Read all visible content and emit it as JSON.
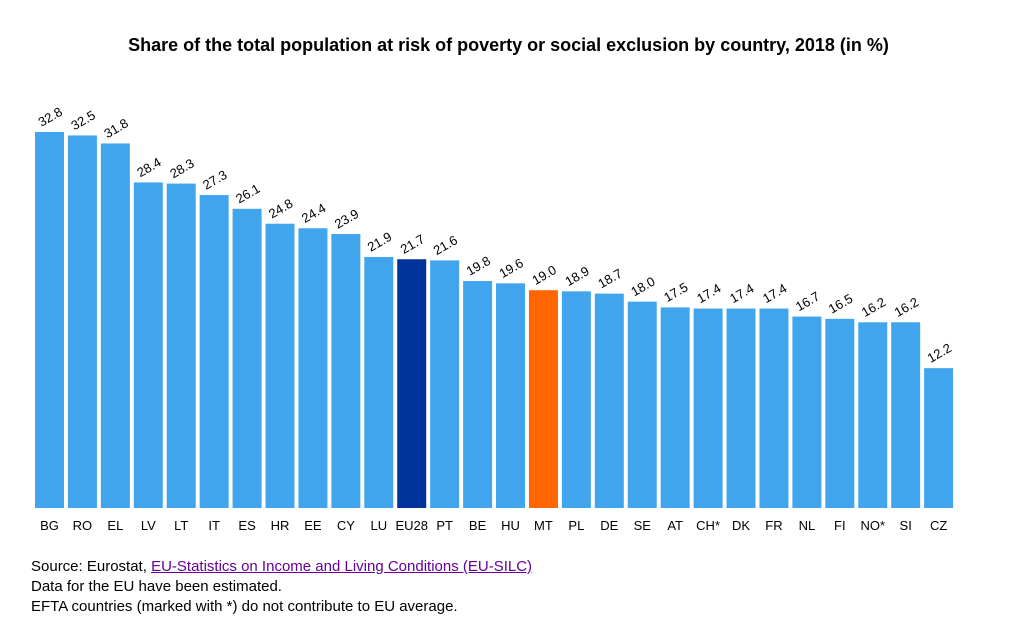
{
  "chart_data": {
    "type": "bar",
    "title": "Share of the total population at risk of poverty or social exclusion by country, 2018 (in %)",
    "xlabel": "",
    "ylabel": "",
    "ylim": [
      0,
      32.8
    ],
    "categories": [
      "BG",
      "RO",
      "EL",
      "LV",
      "LT",
      "IT",
      "ES",
      "HR",
      "EE",
      "CY",
      "LU",
      "EU28",
      "PT",
      "BE",
      "HU",
      "MT",
      "PL",
      "DE",
      "SE",
      "AT",
      "CH*",
      "DK",
      "FR",
      "NL",
      "FI",
      "NO*",
      "SI",
      "CZ"
    ],
    "values": [
      32.8,
      32.5,
      31.8,
      28.4,
      28.3,
      27.3,
      26.1,
      24.8,
      24.4,
      23.9,
      21.9,
      21.7,
      21.6,
      19.8,
      19.6,
      19.0,
      18.9,
      18.7,
      18.0,
      17.5,
      17.4,
      17.4,
      17.4,
      16.7,
      16.5,
      16.2,
      16.2,
      12.2
    ],
    "value_labels": [
      "32.8",
      "32.5",
      "31.8",
      "28.4",
      "28.3",
      "27.3",
      "26.1",
      "24.8",
      "24.4",
      "23.9",
      "21.9",
      "21.7",
      "21.6",
      "19.8",
      "19.6",
      "19.0",
      "18.9",
      "18.7",
      "18.0",
      "17.5",
      "17.4",
      "17.4",
      "17.4",
      "16.7",
      "16.5",
      "16.2",
      "16.2",
      "12.2"
    ],
    "colors": {
      "default": "#41a5ee",
      "EU28": "#003399",
      "MT": "#ff6600"
    },
    "grid": false,
    "legend": "none"
  },
  "footer": {
    "source_prefix": "Source: Eurostat, ",
    "source_link": "EU-Statistics on Income and Living Conditions (EU-SILC)",
    "note_eu": "Data for the EU have been estimated.",
    "note_efta": "EFTA countries (marked with *) do not contribute to EU average."
  }
}
